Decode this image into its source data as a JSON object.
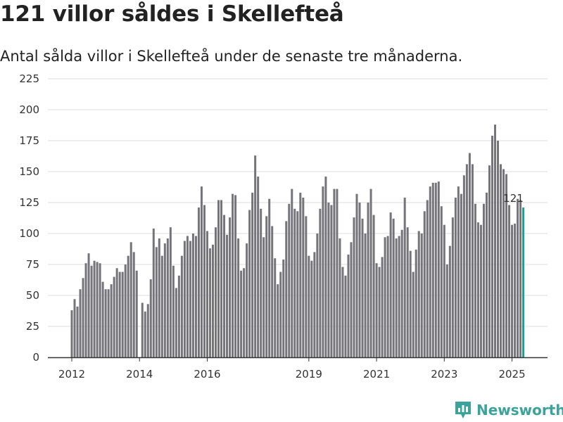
{
  "header": {
    "title": "121 villor såldes i Skellefteå",
    "subtitle": "Antal sålda villor i Skellefteå under de senaste tre månaderna."
  },
  "colors": {
    "bar": "#75747b",
    "highlight": "#1a9e94",
    "grid": "#dddddd",
    "axis": "#333333",
    "brand": "#3aa39a"
  },
  "brand": {
    "name": "Newsworthy",
    "icon": "newsworthy-logo-icon"
  },
  "chart_data": {
    "type": "bar",
    "title": "121 villor såldes i Skellefteå",
    "subtitle": "Antal sålda villor i Skellefteå under de senaste tre månaderna.",
    "xlabel": "",
    "ylabel": "",
    "ylim": [
      0,
      225
    ],
    "yticks": [
      0,
      25,
      50,
      75,
      100,
      125,
      150,
      175,
      200,
      225
    ],
    "xtick_labels": [
      "2012",
      "2014",
      "2016",
      "2019",
      "2021",
      "2023",
      "2025"
    ],
    "grid": true,
    "legend": "none",
    "annotations": [
      {
        "label": "121",
        "series_index": 160
      }
    ],
    "x": [
      "2012-01",
      "2012-02",
      "2012-03",
      "2012-04",
      "2012-05",
      "2012-06",
      "2012-07",
      "2012-08",
      "2012-09",
      "2012-10",
      "2012-11",
      "2012-12",
      "2013-01",
      "2013-02",
      "2013-03",
      "2013-04",
      "2013-05",
      "2013-06",
      "2013-07",
      "2013-08",
      "2013-09",
      "2013-10",
      "2013-11",
      "2013-12",
      "2014-01",
      "2014-02",
      "2014-03",
      "2014-04",
      "2014-05",
      "2014-06",
      "2014-07",
      "2014-08",
      "2014-09",
      "2014-10",
      "2014-11",
      "2014-12",
      "2015-01",
      "2015-02",
      "2015-03",
      "2015-04",
      "2015-05",
      "2015-06",
      "2015-07",
      "2015-08",
      "2015-09",
      "2015-10",
      "2015-11",
      "2015-12",
      "2016-01",
      "2016-02",
      "2016-03",
      "2016-04",
      "2016-05",
      "2016-06",
      "2016-07",
      "2016-08",
      "2016-09",
      "2016-10",
      "2016-11",
      "2016-12",
      "2017-01",
      "2017-02",
      "2017-03",
      "2017-04",
      "2017-05",
      "2017-06",
      "2017-07",
      "2017-08",
      "2017-09",
      "2017-10",
      "2017-11",
      "2017-12",
      "2018-01",
      "2018-02",
      "2018-03",
      "2018-04",
      "2018-05",
      "2018-06",
      "2018-07",
      "2018-08",
      "2018-09",
      "2018-10",
      "2018-11",
      "2018-12",
      "2019-01",
      "2019-02",
      "2019-03",
      "2019-04",
      "2019-05",
      "2019-06",
      "2019-07",
      "2019-08",
      "2019-09",
      "2019-10",
      "2019-11",
      "2019-12",
      "2020-01",
      "2020-02",
      "2020-03",
      "2020-04",
      "2020-05",
      "2020-06",
      "2020-07",
      "2020-08",
      "2020-09",
      "2020-10",
      "2020-11",
      "2020-12",
      "2021-01",
      "2021-02",
      "2021-03",
      "2021-04",
      "2021-05",
      "2021-06",
      "2021-07",
      "2021-08",
      "2021-09",
      "2021-10",
      "2021-11",
      "2021-12",
      "2022-01",
      "2022-02",
      "2022-03",
      "2022-04",
      "2022-05",
      "2022-06",
      "2022-07",
      "2022-08",
      "2022-09",
      "2022-10",
      "2022-11",
      "2022-12",
      "2023-01",
      "2023-02",
      "2023-03",
      "2023-04",
      "2023-05",
      "2023-06",
      "2023-07",
      "2023-08",
      "2023-09",
      "2023-10",
      "2023-11",
      "2023-12",
      "2024-01",
      "2024-02",
      "2024-03",
      "2024-04",
      "2024-05",
      "2024-06",
      "2024-07",
      "2024-08",
      "2024-09",
      "2024-10",
      "2024-11",
      "2024-12",
      "2025-01",
      "2025-02",
      "2025-03",
      "2025-04",
      "2025-05"
    ],
    "values": [
      38,
      47,
      41,
      55,
      64,
      76,
      84,
      74,
      78,
      77,
      76,
      61,
      55,
      55,
      59,
      65,
      72,
      69,
      69,
      75,
      82,
      93,
      85,
      70,
      null,
      44,
      37,
      43,
      63,
      104,
      89,
      96,
      82,
      92,
      96,
      105,
      74,
      56,
      66,
      82,
      94,
      98,
      94,
      100,
      98,
      121,
      138,
      123,
      102,
      88,
      91,
      105,
      127,
      127,
      115,
      99,
      113,
      132,
      131,
      96,
      70,
      72,
      92,
      119,
      133,
      163,
      146,
      120,
      97,
      114,
      128,
      106,
      80,
      59,
      69,
      79,
      110,
      124,
      136,
      120,
      118,
      133,
      129,
      114,
      82,
      78,
      85,
      100,
      120,
      138,
      146,
      125,
      123,
      136,
      136,
      96,
      73,
      66,
      83,
      93,
      113,
      132,
      125,
      112,
      100,
      125,
      136,
      115,
      76,
      73,
      81,
      97,
      98,
      117,
      112,
      96,
      98,
      103,
      129,
      105,
      86,
      69,
      87,
      102,
      100,
      118,
      127,
      138,
      141,
      141,
      142,
      122,
      107,
      75,
      90,
      113,
      129,
      138,
      132,
      147,
      156,
      165,
      156,
      124,
      109,
      107,
      124,
      133,
      155,
      179,
      188,
      175,
      156,
      152,
      148,
      123,
      107,
      108,
      128,
      127,
      121
    ]
  }
}
